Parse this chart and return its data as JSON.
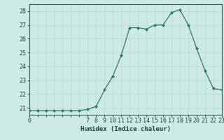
{
  "x": [
    0,
    1,
    2,
    3,
    4,
    5,
    6,
    7,
    8,
    9,
    10,
    11,
    12,
    13,
    14,
    15,
    16,
    17,
    18,
    19,
    20,
    21,
    22,
    23
  ],
  "y": [
    20.8,
    20.8,
    20.8,
    20.8,
    20.8,
    20.8,
    20.8,
    20.9,
    21.1,
    22.3,
    23.3,
    24.8,
    26.8,
    26.8,
    26.7,
    27.0,
    27.0,
    27.9,
    28.1,
    27.0,
    25.3,
    23.7,
    22.4,
    22.3
  ],
  "line_color": "#2a7a6f",
  "marker": "D",
  "marker_size": 2.2,
  "bg_color": "#ceeae4",
  "grid_color_major": "#b8d8d2",
  "grid_color_minor": "#d0e8e4",
  "xlabel": "Humidex (Indice chaleur)",
  "xlim": [
    0,
    23
  ],
  "ylim": [
    20.5,
    28.5
  ],
  "yticks": [
    21,
    22,
    23,
    24,
    25,
    26,
    27,
    28
  ],
  "xticks": [
    0,
    7,
    8,
    9,
    10,
    11,
    12,
    13,
    14,
    15,
    16,
    17,
    18,
    19,
    20,
    21,
    22,
    23
  ],
  "xlabel_fontsize": 6.5,
  "tick_fontsize": 6.0,
  "tick_color": "#1a4040",
  "axis_color": "#1a4040",
  "spine_color": "#2a6060"
}
